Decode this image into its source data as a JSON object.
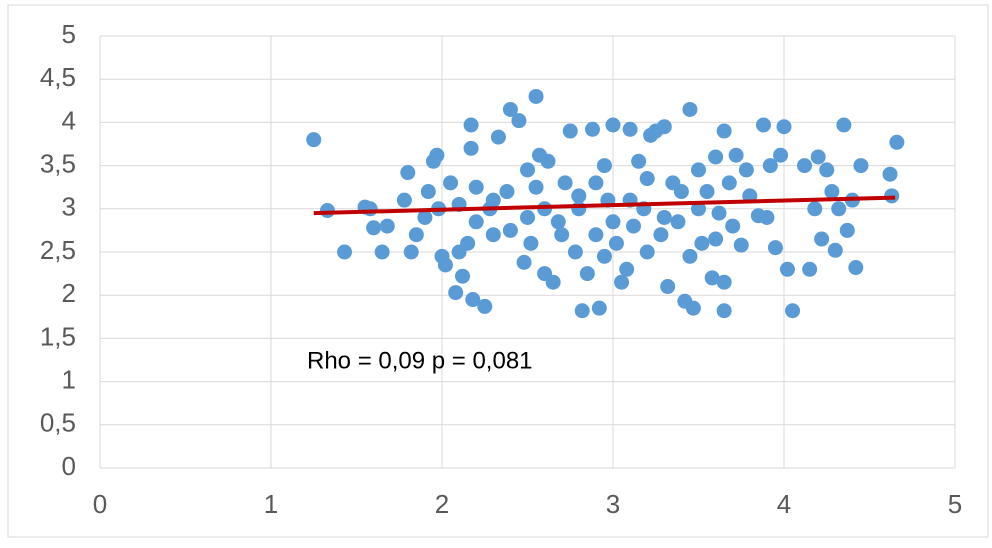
{
  "chart_data": {
    "type": "scatter",
    "annotation": "Rho = 0,09 p = 0,081",
    "color": "#5b9bd5",
    "x": [
      1.25,
      1.33,
      1.43,
      1.55,
      1.58,
      1.6,
      1.65,
      1.68,
      1.78,
      1.8,
      1.82,
      1.85,
      1.9,
      1.92,
      1.95,
      1.97,
      1.98,
      2.0,
      2.02,
      2.05,
      2.08,
      2.1,
      2.12,
      2.15,
      2.17,
      2.17,
      2.18,
      2.2,
      2.25,
      2.28,
      2.3,
      2.33,
      2.38,
      2.4,
      2.45,
      2.48,
      2.5,
      2.52,
      2.55,
      2.57,
      2.6,
      2.62,
      2.65,
      2.68,
      2.72,
      2.75,
      2.78,
      2.8,
      2.82,
      2.85,
      2.88,
      2.9,
      2.92,
      2.95,
      2.97,
      3.0,
      3.02,
      3.05,
      3.08,
      3.1,
      3.12,
      3.15,
      3.18,
      3.2,
      3.22,
      3.25,
      3.28,
      3.3,
      3.32,
      3.35,
      3.38,
      3.42,
      3.45,
      3.47,
      3.5,
      3.52,
      3.55,
      3.58,
      3.6,
      3.62,
      3.65,
      3.65,
      3.65,
      3.68,
      3.72,
      3.75,
      3.78,
      3.8,
      3.85,
      3.88,
      3.9,
      3.92,
      3.95,
      3.98,
      4.0,
      4.02,
      4.05,
      4.12,
      4.15,
      4.18,
      4.2,
      4.22,
      4.25,
      4.28,
      4.3,
      4.32,
      4.35,
      4.37,
      4.4,
      4.42,
      4.45,
      4.62,
      4.63,
      4.66,
      2.1,
      2.3,
      2.5,
      2.7,
      2.9,
      3.1,
      3.3,
      3.5,
      3.7,
      2.6,
      3.0,
      3.4,
      2.2,
      2.4,
      2.8,
      3.2,
      3.6,
      3.45,
      2.95,
      2.55
    ],
    "y": [
      3.8,
      2.98,
      2.5,
      3.02,
      3.0,
      2.78,
      2.5,
      2.8,
      3.1,
      3.42,
      2.5,
      2.7,
      2.9,
      3.2,
      3.55,
      3.62,
      3.0,
      2.45,
      2.35,
      3.3,
      2.03,
      2.5,
      2.22,
      2.6,
      3.97,
      3.7,
      1.95,
      3.25,
      1.87,
      3.0,
      2.7,
      3.83,
      3.2,
      4.15,
      4.02,
      2.38,
      3.45,
      2.6,
      4.3,
      3.62,
      2.25,
      3.55,
      2.15,
      2.85,
      3.3,
      3.9,
      2.5,
      3.0,
      1.82,
      2.25,
      3.92,
      2.7,
      1.85,
      3.5,
      3.1,
      3.97,
      2.6,
      2.15,
      2.3,
      3.92,
      2.8,
      3.55,
      3.0,
      2.5,
      3.85,
      3.9,
      2.7,
      3.95,
      2.1,
      3.3,
      2.85,
      1.93,
      4.15,
      1.85,
      3.45,
      2.6,
      3.2,
      2.2,
      3.6,
      2.95,
      3.9,
      2.15,
      1.82,
      3.3,
      3.62,
      2.58,
      3.45,
      3.15,
      2.92,
      3.97,
      2.9,
      3.5,
      2.55,
      3.62,
      3.95,
      2.3,
      1.82,
      3.5,
      2.3,
      3.0,
      3.6,
      2.65,
      3.45,
      3.2,
      2.52,
      3.0,
      3.97,
      2.75,
      3.1,
      2.32,
      3.5,
      3.4,
      3.15,
      3.77,
      3.05,
      3.1,
      2.9,
      2.7,
      3.3,
      3.1,
      2.9,
      3.0,
      2.8,
      3.0,
      2.85,
      3.2,
      2.85,
      2.75,
      3.15,
      3.35,
      2.65,
      2.45,
      2.45,
      3.25
    ],
    "trendline": {
      "x": [
        1.25,
        4.65
      ],
      "y": [
        2.95,
        3.13
      ],
      "color": "#c00000"
    },
    "xlim": [
      0,
      5
    ],
    "xticks": [
      0,
      1,
      2,
      3,
      4,
      5
    ],
    "ylim": [
      0,
      5
    ],
    "yticks": [
      0,
      {
        "value": 0.5,
        "label": "0,5"
      },
      1,
      {
        "value": 1.5,
        "label": "1,5"
      },
      2,
      {
        "value": 2.5,
        "label": "2,5"
      },
      3,
      {
        "value": 3.5,
        "label": "3,5"
      },
      4,
      {
        "value": 4.5,
        "label": "4,5"
      },
      5
    ],
    "grid": true
  }
}
